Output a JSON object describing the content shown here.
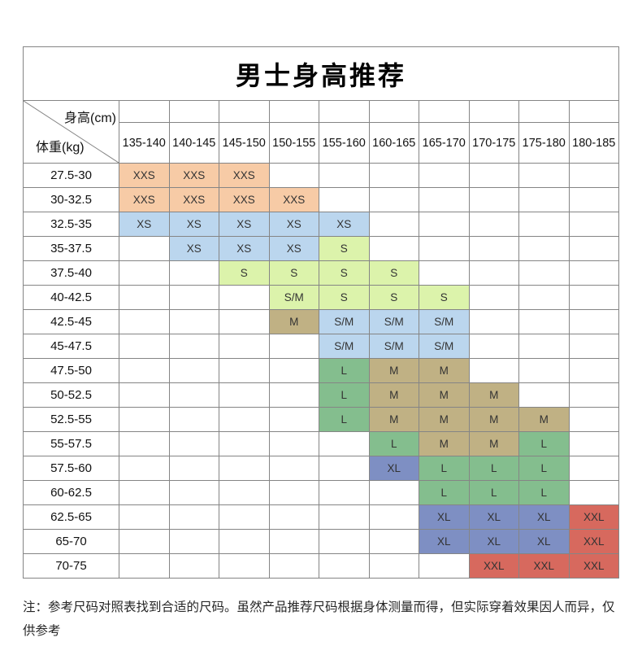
{
  "title": "男士身高推荐",
  "corner": {
    "top_label": "身高(cm)",
    "left_label": "体重(kg)"
  },
  "note": "注：参考尺码对照表找到合适的尺码。虽然产品推荐尺码根据身体测量而得，但实际穿着效果因人而异，仅供参考",
  "colors": {
    "xxs": "#F7CBA6",
    "xs": "#BBD6EE",
    "s": "#DCF3AB",
    "sm": "#BBD6EE",
    "m": "#C0B184",
    "l": "#84BE8E",
    "xl": "#7E8FC3",
    "xxl": "#D7695E"
  },
  "chart_data": {
    "type": "table",
    "title": "男士身高推荐",
    "xlabel": "身高(cm)",
    "ylabel": "体重(kg)",
    "columns": [
      "135-140",
      "140-145",
      "145-150",
      "150-155",
      "155-160",
      "160-165",
      "165-170",
      "170-175",
      "175-180",
      "180-185"
    ],
    "rows": [
      {
        "weight": "27.5-30",
        "cells": [
          {
            "t": "XXS",
            "k": "xxs"
          },
          {
            "t": "XXS",
            "k": "xxs"
          },
          {
            "t": "XXS",
            "k": "xxs"
          },
          null,
          null,
          null,
          null,
          null,
          null,
          null
        ]
      },
      {
        "weight": "30-32.5",
        "cells": [
          {
            "t": "XXS",
            "k": "xxs"
          },
          {
            "t": "XXS",
            "k": "xxs"
          },
          {
            "t": "XXS",
            "k": "xxs"
          },
          {
            "t": "XXS",
            "k": "xxs"
          },
          null,
          null,
          null,
          null,
          null,
          null
        ]
      },
      {
        "weight": "32.5-35",
        "cells": [
          {
            "t": "XS",
            "k": "xs"
          },
          {
            "t": "XS",
            "k": "xs"
          },
          {
            "t": "XS",
            "k": "xs"
          },
          {
            "t": "XS",
            "k": "xs"
          },
          {
            "t": "XS",
            "k": "xs"
          },
          null,
          null,
          null,
          null,
          null
        ]
      },
      {
        "weight": "35-37.5",
        "cells": [
          null,
          {
            "t": "XS",
            "k": "xs"
          },
          {
            "t": "XS",
            "k": "xs"
          },
          {
            "t": "XS",
            "k": "xs"
          },
          {
            "t": "S",
            "k": "s"
          },
          null,
          null,
          null,
          null,
          null
        ]
      },
      {
        "weight": "37.5-40",
        "cells": [
          null,
          null,
          {
            "t": "S",
            "k": "s"
          },
          {
            "t": "S",
            "k": "s"
          },
          {
            "t": "S",
            "k": "s"
          },
          {
            "t": "S",
            "k": "s"
          },
          null,
          null,
          null,
          null
        ]
      },
      {
        "weight": "40-42.5",
        "cells": [
          null,
          null,
          null,
          {
            "t": "S/M",
            "k": "s"
          },
          {
            "t": "S",
            "k": "s"
          },
          {
            "t": "S",
            "k": "s"
          },
          {
            "t": "S",
            "k": "s"
          },
          null,
          null,
          null
        ]
      },
      {
        "weight": "42.5-45",
        "cells": [
          null,
          null,
          null,
          {
            "t": "M",
            "k": "m"
          },
          {
            "t": "S/M",
            "k": "sm"
          },
          {
            "t": "S/M",
            "k": "sm"
          },
          {
            "t": "S/M",
            "k": "sm"
          },
          null,
          null,
          null
        ]
      },
      {
        "weight": "45-47.5",
        "cells": [
          null,
          null,
          null,
          null,
          {
            "t": "S/M",
            "k": "sm"
          },
          {
            "t": "S/M",
            "k": "sm"
          },
          {
            "t": "S/M",
            "k": "sm"
          },
          null,
          null,
          null
        ]
      },
      {
        "weight": "47.5-50",
        "cells": [
          null,
          null,
          null,
          null,
          {
            "t": "L",
            "k": "l"
          },
          {
            "t": "M",
            "k": "m"
          },
          {
            "t": "M",
            "k": "m"
          },
          null,
          null,
          null
        ]
      },
      {
        "weight": "50-52.5",
        "cells": [
          null,
          null,
          null,
          null,
          {
            "t": "L",
            "k": "l"
          },
          {
            "t": "M",
            "k": "m"
          },
          {
            "t": "M",
            "k": "m"
          },
          {
            "t": "M",
            "k": "m"
          },
          null,
          null
        ]
      },
      {
        "weight": "52.5-55",
        "cells": [
          null,
          null,
          null,
          null,
          {
            "t": "L",
            "k": "l"
          },
          {
            "t": "M",
            "k": "m"
          },
          {
            "t": "M",
            "k": "m"
          },
          {
            "t": "M",
            "k": "m"
          },
          {
            "t": "M",
            "k": "m"
          },
          null
        ]
      },
      {
        "weight": "55-57.5",
        "cells": [
          null,
          null,
          null,
          null,
          null,
          {
            "t": "L",
            "k": "l"
          },
          {
            "t": "M",
            "k": "m"
          },
          {
            "t": "M",
            "k": "m"
          },
          {
            "t": "L",
            "k": "l"
          },
          null
        ]
      },
      {
        "weight": "57.5-60",
        "cells": [
          null,
          null,
          null,
          null,
          null,
          {
            "t": "XL",
            "k": "xl"
          },
          {
            "t": "L",
            "k": "l"
          },
          {
            "t": "L",
            "k": "l"
          },
          {
            "t": "L",
            "k": "l"
          },
          null
        ]
      },
      {
        "weight": "60-62.5",
        "cells": [
          null,
          null,
          null,
          null,
          null,
          null,
          {
            "t": "L",
            "k": "l"
          },
          {
            "t": "L",
            "k": "l"
          },
          {
            "t": "L",
            "k": "l"
          },
          null
        ]
      },
      {
        "weight": "62.5-65",
        "cells": [
          null,
          null,
          null,
          null,
          null,
          null,
          {
            "t": "XL",
            "k": "xl"
          },
          {
            "t": "XL",
            "k": "xl"
          },
          {
            "t": "XL",
            "k": "xl"
          },
          {
            "t": "XXL",
            "k": "xxl"
          }
        ]
      },
      {
        "weight": "65-70",
        "cells": [
          null,
          null,
          null,
          null,
          null,
          null,
          {
            "t": "XL",
            "k": "xl"
          },
          {
            "t": "XL",
            "k": "xl"
          },
          {
            "t": "XL",
            "k": "xl"
          },
          {
            "t": "XXL",
            "k": "xxl"
          }
        ]
      },
      {
        "weight": "70-75",
        "cells": [
          null,
          null,
          null,
          null,
          null,
          null,
          null,
          {
            "t": "XXL",
            "k": "xxl"
          },
          {
            "t": "XXL",
            "k": "xxl"
          },
          {
            "t": "XXL",
            "k": "xxl"
          }
        ]
      }
    ]
  }
}
